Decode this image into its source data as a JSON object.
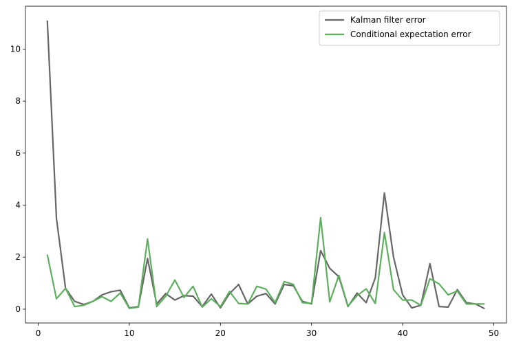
{
  "chart_data": {
    "type": "line",
    "x": [
      1,
      2,
      3,
      4,
      5,
      6,
      7,
      8,
      9,
      10,
      11,
      12,
      13,
      14,
      15,
      16,
      17,
      18,
      19,
      20,
      21,
      22,
      23,
      24,
      25,
      26,
      27,
      28,
      29,
      30,
      31,
      32,
      33,
      34,
      35,
      36,
      37,
      38,
      39,
      40,
      41,
      42,
      43,
      44,
      45,
      46,
      47,
      48,
      49
    ],
    "series": [
      {
        "name": "Kalman filter error",
        "color": "#666666",
        "values": [
          11.1,
          3.5,
          0.8,
          0.3,
          0.18,
          0.3,
          0.55,
          0.67,
          0.73,
          0.05,
          0.1,
          1.95,
          0.2,
          0.6,
          0.35,
          0.52,
          0.5,
          0.1,
          0.58,
          0.05,
          0.6,
          0.95,
          0.2,
          0.5,
          0.6,
          0.2,
          0.95,
          0.9,
          0.3,
          0.2,
          2.25,
          1.57,
          1.25,
          0.1,
          0.62,
          0.25,
          1.2,
          4.47,
          2.0,
          0.55,
          0.05,
          0.15,
          1.75,
          0.1,
          0.08,
          0.75,
          0.25,
          0.2,
          0.02
        ]
      },
      {
        "name": "Conditional expectation error",
        "color": "#5fae5f",
        "values": [
          2.1,
          0.4,
          0.8,
          0.1,
          0.15,
          0.3,
          0.48,
          0.3,
          0.62,
          0.03,
          0.08,
          2.7,
          0.1,
          0.5,
          1.12,
          0.45,
          0.88,
          0.08,
          0.4,
          0.1,
          0.68,
          0.22,
          0.2,
          0.88,
          0.77,
          0.25,
          1.06,
          0.95,
          0.25,
          0.22,
          3.52,
          0.28,
          1.3,
          0.12,
          0.52,
          0.78,
          0.22,
          2.95,
          0.75,
          0.35,
          0.35,
          0.15,
          1.17,
          0.97,
          0.55,
          0.7,
          0.2,
          0.2,
          0.2
        ]
      }
    ],
    "xlim": [
      -1.4,
      51.4
    ],
    "xticks": [
      0,
      10,
      20,
      30,
      40,
      50
    ],
    "ylim": [
      -0.53,
      11.65
    ],
    "yticks": [
      0,
      2,
      4,
      6,
      8,
      10
    ],
    "legend": "upper right"
  }
}
